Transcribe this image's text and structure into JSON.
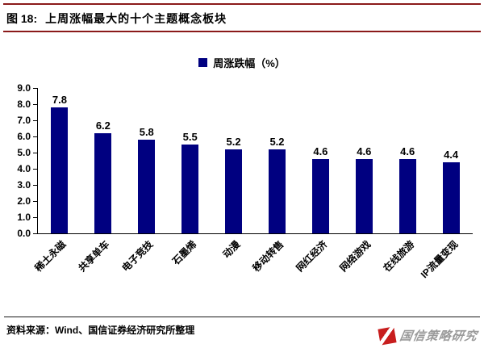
{
  "header": {
    "figure_label": "图 18:",
    "title": "上周涨幅最大的十个主题概念板块"
  },
  "chart_data": {
    "type": "bar",
    "legend": "周涨跌幅（%）",
    "categories": [
      "稀土永磁",
      "共享单车",
      "电子竞技",
      "石墨烯",
      "动漫",
      "移动转售",
      "网红经济",
      "网络游戏",
      "在线旅游",
      "IP流量变现"
    ],
    "values": [
      7.8,
      6.2,
      5.8,
      5.5,
      5.2,
      5.2,
      4.6,
      4.6,
      4.6,
      4.4
    ],
    "ylim": [
      0,
      9
    ],
    "ytick_step": 1.0,
    "yticks": [
      "9.0",
      "8.0",
      "7.0",
      "6.0",
      "5.0",
      "4.0",
      "3.0",
      "2.0",
      "1.0",
      "0.0"
    ],
    "grid": false,
    "legend_position": "top",
    "bar_color": "#000080"
  },
  "footer": {
    "source": "资料来源：Wind、国信证券经济研究所整理"
  },
  "branding": {
    "logo_text": "国信策略研究",
    "logo_color": "#c81e1e"
  },
  "colors": {
    "accent_rule": "#8b1a1a",
    "axis": "#000000",
    "text": "#000000",
    "brand_text": "#9a9a9a"
  }
}
